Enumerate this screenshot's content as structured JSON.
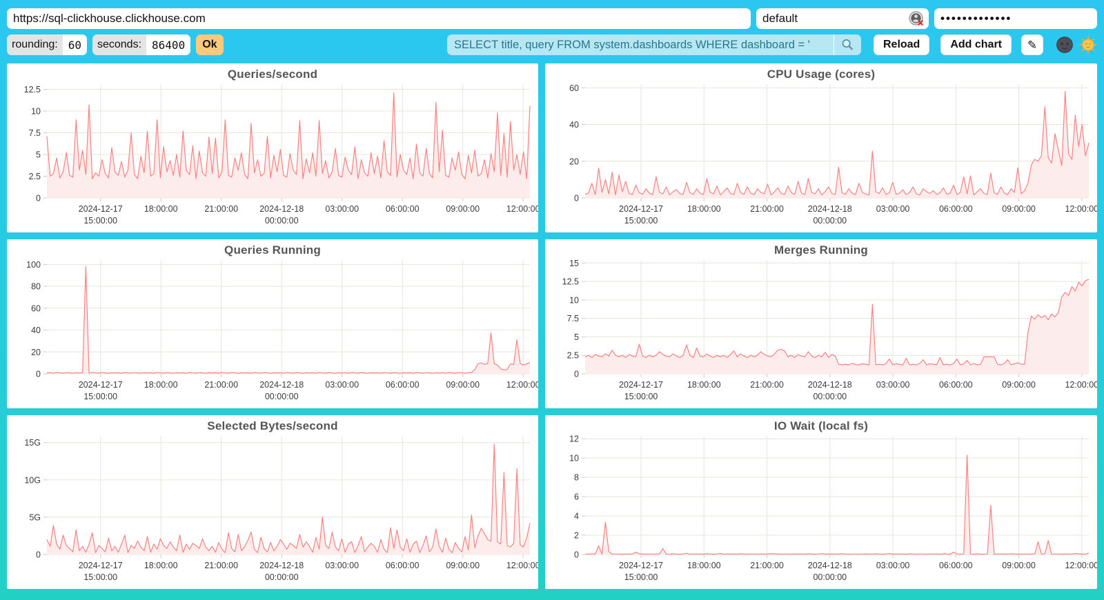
{
  "topbar": {
    "url": "https://sql-clickhouse.clickhouse.com",
    "user": "default",
    "password_masked": "•••••••••••••"
  },
  "toolbar": {
    "rounding_label": "rounding:",
    "rounding_value": "60",
    "seconds_label": "seconds:",
    "seconds_value": "86400",
    "ok_label": "Ok",
    "query": "SELECT title, query FROM system.dashboards WHERE dashboard = '",
    "reload_label": "Reload",
    "add_chart_label": "Add chart",
    "edit_icon": "✎"
  },
  "icons": {
    "search": "magnifier",
    "user_status": "avatar-load-error",
    "theme_dark": "new-moon-face",
    "theme_light": "sun-with-face"
  },
  "colors": {
    "background_top": "#2bc7f1",
    "background_bottom": "#22d0c4",
    "panel": "#ffffff",
    "series_line": "#f98181",
    "series_fill": "#fdecec",
    "grid": "#e7e4da",
    "tick": "#c9c9c9",
    "query_bg": "#b7e7f3",
    "query_text": "#27768c",
    "ok_bg": "#ffc97c"
  },
  "chart_data": [
    {
      "type": "line",
      "title": "Queries/second",
      "ymax": 13.1,
      "yticks": [
        [
          0,
          "0"
        ],
        [
          2.5,
          "2.5"
        ],
        [
          5,
          "5"
        ],
        [
          7.5,
          "7.5"
        ],
        [
          10,
          "10"
        ],
        [
          12.5,
          "12.5"
        ]
      ],
      "xticks": [
        [
          0.111,
          "2024-12-17",
          "15:00:00"
        ],
        [
          0.236,
          "18:00:00"
        ],
        [
          0.361,
          "21:00:00"
        ],
        [
          0.486,
          "2024-12-18",
          "00:00:00"
        ],
        [
          0.611,
          "03:00:00"
        ],
        [
          0.736,
          "06:00:00"
        ],
        [
          0.861,
          "09:00:00"
        ],
        [
          0.986,
          "12:00:00"
        ]
      ],
      "values": [
        7.1,
        2.5,
        2.8,
        4.6,
        2.3,
        3.0,
        5.2,
        2.6,
        2.4,
        9.0,
        3.2,
        5.5,
        2.7,
        10.7,
        2.2,
        2.9,
        2.5,
        4.4,
        2.8,
        2.3,
        5.8,
        3.0,
        2.6,
        4.2,
        2.4,
        3.2,
        7.5,
        2.7,
        2.2,
        4.8,
        2.9,
        7.7,
        2.5,
        2.8,
        9.0,
        2.3,
        5.9,
        3.0,
        4.3,
        2.6,
        5.0,
        2.4,
        7.7,
        3.2,
        2.7,
        6.0,
        2.2,
        5.4,
        2.9,
        2.5,
        7.0,
        2.8,
        6.9,
        2.3,
        3.0,
        9.0,
        2.6,
        2.4,
        4.6,
        3.2,
        5.2,
        2.7,
        2.2,
        8.6,
        2.9,
        4.4,
        2.5,
        2.8,
        7.1,
        2.3,
        4.9,
        3.0,
        5.6,
        2.6,
        2.4,
        5.1,
        3.2,
        2.7,
        8.9,
        2.2,
        4.5,
        2.9,
        5.2,
        2.5,
        8.9,
        2.8,
        4.3,
        2.3,
        3.0,
        5.7,
        2.6,
        2.4,
        4.7,
        3.2,
        2.7,
        5.9,
        2.2,
        4.4,
        2.9,
        2.5,
        5.2,
        2.8,
        4.8,
        2.3,
        6.6,
        3.0,
        2.6,
        12.1,
        2.4,
        5.0,
        3.2,
        2.7,
        4.6,
        2.2,
        6.2,
        2.9,
        2.5,
        5.7,
        2.8,
        2.3,
        11.0,
        3.0,
        7.8,
        2.6,
        2.4,
        4.6,
        3.2,
        5.3,
        2.7,
        2.2,
        4.9,
        2.9,
        5.5,
        2.5,
        2.8,
        4.4,
        2.3,
        5.1,
        3.0,
        9.8,
        2.6,
        7.4,
        2.4,
        8.8,
        3.2,
        5.0,
        2.7,
        5.3,
        2.2,
        10.6
      ]
    },
    {
      "type": "line",
      "title": "CPU Usage (cores)",
      "ymax": 62,
      "yticks": [
        [
          0,
          "0"
        ],
        [
          20,
          "20"
        ],
        [
          40,
          "40"
        ],
        [
          60,
          "60"
        ]
      ],
      "xticks": [
        [
          0.111,
          "2024-12-17",
          "15:00:00"
        ],
        [
          0.236,
          "18:00:00"
        ],
        [
          0.361,
          "21:00:00"
        ],
        [
          0.486,
          "2024-12-18",
          "00:00:00"
        ],
        [
          0.611,
          "03:00:00"
        ],
        [
          0.736,
          "06:00:00"
        ],
        [
          0.861,
          "09:00:00"
        ],
        [
          0.986,
          "12:00:00"
        ]
      ],
      "values": [
        2,
        2.6,
        8,
        1.8,
        16.2,
        3,
        10,
        2.2,
        14,
        1.6,
        12.5,
        3.4,
        9,
        2.4,
        1.9,
        7,
        2.8,
        2,
        5,
        2.6,
        1.8,
        11.5,
        3,
        2.2,
        6,
        1.6,
        3.4,
        4.5,
        2.4,
        1.9,
        8.5,
        2.8,
        2,
        5,
        2.6,
        1.8,
        10.5,
        3,
        2.2,
        6.5,
        1.6,
        3.4,
        5.5,
        2.4,
        1.9,
        8,
        2.8,
        2,
        6,
        2.6,
        1.8,
        5,
        3,
        2.2,
        7.5,
        1.6,
        3.4,
        5.5,
        2.4,
        1.9,
        6.5,
        2.8,
        2,
        9,
        2.6,
        1.8,
        10.5,
        3,
        2.2,
        5,
        1.6,
        3.4,
        6,
        2.4,
        1.9,
        16.8,
        2.8,
        2,
        5,
        2.6,
        1.8,
        8,
        3,
        2.2,
        1.6,
        25.5,
        3.4,
        2.4,
        5.5,
        1.9,
        2.8,
        8.5,
        2,
        2.6,
        4.5,
        1.8,
        3,
        6,
        2.2,
        1.6,
        5,
        3.4,
        2.4,
        4,
        1.9,
        2.8,
        5.5,
        2,
        2.6,
        7,
        1.8,
        3,
        11.5,
        2.2,
        12,
        1.6,
        3.4,
        5,
        2.4,
        1.9,
        13.5,
        2.8,
        2,
        6,
        2.6,
        1.8,
        5,
        3,
        16.5,
        2.2,
        4,
        8,
        18,
        21,
        20,
        23,
        49.7,
        22,
        19,
        35,
        26,
        17.5,
        58,
        24,
        21,
        45,
        28,
        40,
        23,
        30
      ]
    },
    {
      "type": "line",
      "title": "Queries Running",
      "ymax": 104,
      "yticks": [
        [
          0,
          "0"
        ],
        [
          20,
          "20"
        ],
        [
          40,
          "40"
        ],
        [
          60,
          "60"
        ],
        [
          80,
          "80"
        ],
        [
          100,
          "100"
        ]
      ],
      "xticks": [
        [
          0.111,
          "2024-12-17",
          "15:00:00"
        ],
        [
          0.236,
          "18:00:00"
        ],
        [
          0.361,
          "21:00:00"
        ],
        [
          0.486,
          "2024-12-18",
          "00:00:00"
        ],
        [
          0.611,
          "03:00:00"
        ],
        [
          0.736,
          "06:00:00"
        ],
        [
          0.861,
          "09:00:00"
        ],
        [
          0.986,
          "12:00:00"
        ]
      ],
      "values": [
        0.7,
        1,
        0.5,
        1.2,
        0.8,
        0.6,
        1.1,
        0.9,
        0.5,
        1,
        0.7,
        1,
        98,
        0.5,
        1.2,
        0.8,
        0.6,
        1.1,
        0.9,
        0.5,
        1,
        0.7,
        1,
        0.5,
        1.2,
        0.8,
        0.6,
        1.1,
        0.9,
        0.5,
        1,
        0.7,
        1,
        0.5,
        1.2,
        0.8,
        0.6,
        1.1,
        0.9,
        0.5,
        1,
        0.7,
        1,
        0.5,
        1.2,
        0.8,
        0.6,
        1.1,
        0.9,
        0.5,
        1,
        0.7,
        1,
        0.5,
        1.2,
        0.8,
        0.6,
        1.1,
        0.9,
        0.5,
        1,
        0.7,
        1,
        0.5,
        1.2,
        0.8,
        0.6,
        1.1,
        0.9,
        0.5,
        1,
        0.7,
        1,
        0.5,
        1.2,
        0.8,
        0.6,
        1.1,
        0.9,
        0.5,
        1,
        0.7,
        1,
        0.5,
        1.2,
        0.8,
        0.6,
        1.1,
        0.9,
        0.5,
        1,
        0.7,
        1,
        0.5,
        1.2,
        0.8,
        0.6,
        1.1,
        0.9,
        0.5,
        1,
        0.7,
        1,
        0.5,
        1.2,
        0.8,
        0.6,
        1.1,
        0.9,
        0.5,
        1,
        0.7,
        1,
        0.5,
        1.2,
        0.8,
        0.6,
        1.1,
        0.9,
        0.5,
        1,
        0.7,
        1,
        0.5,
        1.2,
        0.8,
        0.6,
        1.1,
        0.9,
        0.5,
        1,
        1.2,
        4,
        9,
        10,
        8.5,
        9.5,
        37.3,
        9,
        8,
        4.5,
        3.5,
        4,
        9,
        8.5,
        31,
        9.5,
        8,
        9,
        10.5
      ]
    },
    {
      "type": "line",
      "title": "Merges Running",
      "ymax": 15.4,
      "yticks": [
        [
          0,
          "0"
        ],
        [
          2.5,
          "2.5"
        ],
        [
          5,
          "5"
        ],
        [
          7.5,
          "7.5"
        ],
        [
          10,
          "10"
        ],
        [
          12.5,
          "12.5"
        ],
        [
          15,
          "15"
        ]
      ],
      "xticks": [
        [
          0.111,
          "2024-12-17",
          "15:00:00"
        ],
        [
          0.236,
          "18:00:00"
        ],
        [
          0.361,
          "21:00:00"
        ],
        [
          0.486,
          "2024-12-18",
          "00:00:00"
        ],
        [
          0.611,
          "03:00:00"
        ],
        [
          0.736,
          "06:00:00"
        ],
        [
          0.861,
          "09:00:00"
        ],
        [
          0.986,
          "12:00:00"
        ]
      ],
      "values": [
        2.3,
        2.5,
        2.2,
        2.6,
        2.4,
        2.3,
        2.7,
        2.4,
        3.2,
        2.5,
        2.3,
        2.5,
        2.2,
        2.6,
        2.4,
        2.3,
        4,
        2.4,
        2.2,
        2.5,
        2.3,
        2.5,
        3,
        2.6,
        2.4,
        2.3,
        2.7,
        2.4,
        2.2,
        2.5,
        3.9,
        2.5,
        2.2,
        3.5,
        2.4,
        2.3,
        2.7,
        2.4,
        2.2,
        2.5,
        2.3,
        2.5,
        2.2,
        2.6,
        3.1,
        2.3,
        2.7,
        2.4,
        2.2,
        2.5,
        2.3,
        2.5,
        3,
        2.6,
        2.4,
        2.3,
        2.7,
        3.2,
        3.3,
        3.1,
        2.3,
        2.5,
        2.2,
        2.6,
        2.4,
        2.3,
        3,
        2.4,
        2.2,
        2.5,
        2.3,
        2.9,
        2.2,
        2.6,
        2.4,
        1.3,
        1.2,
        1.3,
        1.2,
        1.4,
        1.25,
        1.2,
        1.35,
        1.3,
        1.2,
        9.4,
        1.2,
        1.3,
        1.2,
        1.4,
        2,
        1.2,
        1.35,
        1.3,
        1.2,
        2.1,
        1.2,
        1.3,
        1.2,
        1.4,
        1.9,
        1.2,
        1.35,
        1.3,
        1.2,
        2.2,
        1.2,
        1.3,
        1.2,
        1.4,
        2,
        1.2,
        1.35,
        1.8,
        1.2,
        1.4,
        1.2,
        1.3,
        2.3,
        2.3,
        2.3,
        2.3,
        1.3,
        1.2,
        1.4,
        1.9,
        1.2,
        1.35,
        1.5,
        1.3,
        1.3,
        5.6,
        7.8,
        7.4,
        8,
        7.6,
        7.9,
        7.3,
        8.1,
        7.7,
        8.3,
        10.4,
        11,
        10.6,
        11.8,
        11.2,
        12.4,
        11.9,
        12.6,
        12.8
      ]
    },
    {
      "type": "line",
      "title": "Selected Bytes/second",
      "unit": "G",
      "ymax": 15.9,
      "yticks": [
        [
          0,
          "0"
        ],
        [
          5,
          "5G"
        ],
        [
          10,
          "10G"
        ],
        [
          15,
          "15G"
        ]
      ],
      "xticks": [
        [
          0.111,
          "2024-12-17",
          "15:00:00"
        ],
        [
          0.236,
          "18:00:00"
        ],
        [
          0.361,
          "21:00:00"
        ],
        [
          0.486,
          "2024-12-18",
          "00:00:00"
        ],
        [
          0.611,
          "03:00:00"
        ],
        [
          0.736,
          "06:00:00"
        ],
        [
          0.861,
          "09:00:00"
        ],
        [
          0.986,
          "12:00:00"
        ]
      ],
      "values": [
        2,
        1.1,
        3.9,
        1.4,
        0.7,
        2.6,
        1.2,
        0.8,
        0.35,
        3.3,
        0.5,
        1.1,
        0.3,
        1.4,
        2.9,
        0.25,
        1.2,
        0.8,
        0.35,
        2.2,
        0.5,
        1.1,
        0.3,
        1.4,
        2.6,
        0.25,
        1.2,
        0.8,
        1.8,
        1,
        0.5,
        2.4,
        0.3,
        1.4,
        0.7,
        2.1,
        1.2,
        0.8,
        1.7,
        1,
        0.5,
        2.6,
        0.3,
        1.4,
        0.7,
        1.5,
        1.2,
        0.8,
        2.1,
        1,
        0.5,
        1.1,
        0.3,
        1.6,
        0.7,
        0.25,
        2.9,
        0.8,
        0.35,
        2.7,
        0.5,
        1.1,
        1.9,
        3,
        0.7,
        0.25,
        2.3,
        0.8,
        0.35,
        1.6,
        0.5,
        1.1,
        2,
        1.4,
        0.7,
        1.5,
        1.2,
        0.8,
        2.7,
        1,
        1.7,
        1.1,
        0.3,
        2.3,
        0.7,
        5,
        1.2,
        0.8,
        3,
        1,
        0.5,
        2.1,
        0.3,
        1.4,
        1.7,
        0.25,
        1.2,
        2.4,
        0.35,
        1,
        1.5,
        1.1,
        0.3,
        2,
        0.7,
        0.25,
        3.6,
        0.8,
        3.3,
        1,
        0.5,
        2.1,
        0.3,
        1.4,
        1.8,
        0.25,
        1.2,
        2.5,
        0.35,
        1,
        3.4,
        1.1,
        0.3,
        2.2,
        0.7,
        0.25,
        1.6,
        0.8,
        0.35,
        2.4,
        0.6,
        5.3,
        0.9,
        2.5,
        3.5,
        2.8,
        2,
        1.8,
        14.8,
        1.7,
        1.4,
        11,
        1.2,
        1,
        1.5,
        11.5,
        1.3,
        1,
        2.2,
        4.2
      ]
    },
    {
      "type": "line",
      "title": "IO Wait (local fs)",
      "ymax": 12.3,
      "yticks": [
        [
          0,
          "0"
        ],
        [
          2,
          "2"
        ],
        [
          4,
          "4"
        ],
        [
          6,
          "6"
        ],
        [
          8,
          "8"
        ],
        [
          10,
          "10"
        ],
        [
          12,
          "12"
        ]
      ],
      "xticks": [
        [
          0.111,
          "2024-12-17",
          "15:00:00"
        ],
        [
          0.236,
          "18:00:00"
        ],
        [
          0.361,
          "21:00:00"
        ],
        [
          0.486,
          "2024-12-18",
          "00:00:00"
        ],
        [
          0.611,
          "03:00:00"
        ],
        [
          0.736,
          "06:00:00"
        ],
        [
          0.861,
          "09:00:00"
        ],
        [
          0.986,
          "12:00:00"
        ]
      ],
      "values": [
        0.05,
        0.03,
        0.06,
        0.04,
        0.9,
        0.03,
        3.35,
        0.3,
        0.03,
        0.05,
        0.05,
        0.03,
        0.06,
        0.04,
        0.05,
        0.25,
        0.07,
        0.04,
        0.03,
        0.05,
        0.05,
        0.03,
        0.06,
        0.6,
        0.05,
        0.03,
        0.07,
        0.04,
        0.03,
        0.05,
        0.12,
        0.03,
        0.06,
        0.04,
        0.05,
        0.03,
        0.07,
        0.04,
        0.03,
        0.05,
        0.1,
        0.03,
        0.06,
        0.04,
        0.05,
        0.03,
        0.07,
        0.04,
        0.03,
        0.05,
        0.05,
        0.03,
        0.06,
        0.04,
        0.05,
        0.08,
        0.07,
        0.04,
        0.03,
        0.05,
        0.05,
        0.03,
        0.06,
        0.04,
        0.05,
        0.03,
        0.07,
        0.04,
        0.03,
        0.05,
        0.1,
        0.03,
        0.06,
        0.04,
        0.05,
        0.03,
        0.07,
        0.04,
        0.03,
        0.05,
        0.05,
        0.03,
        0.06,
        0.04,
        0.05,
        0.03,
        0.07,
        0.04,
        0.03,
        0.05,
        0.1,
        0.03,
        0.06,
        0.04,
        0.05,
        0.03,
        0.07,
        0.04,
        0.03,
        0.05,
        0.05,
        0.03,
        0.06,
        0.04,
        0.05,
        0.03,
        0.07,
        0.04,
        0.03,
        0.25,
        0.05,
        0.03,
        0.06,
        10.3,
        0.05,
        0.03,
        0.07,
        0.04,
        0.03,
        0.05,
        5.1,
        0.03,
        0.06,
        0.04,
        0.05,
        0.03,
        0.07,
        0.04,
        0.03,
        0.05,
        0.05,
        0.03,
        0.06,
        0.04,
        1.3,
        0.03,
        0.07,
        1.45,
        0.03,
        0.05,
        0.05,
        0.03,
        0.06,
        0.04,
        0.05,
        0.1,
        0.07,
        0.04,
        0.03,
        0.15
      ]
    }
  ]
}
